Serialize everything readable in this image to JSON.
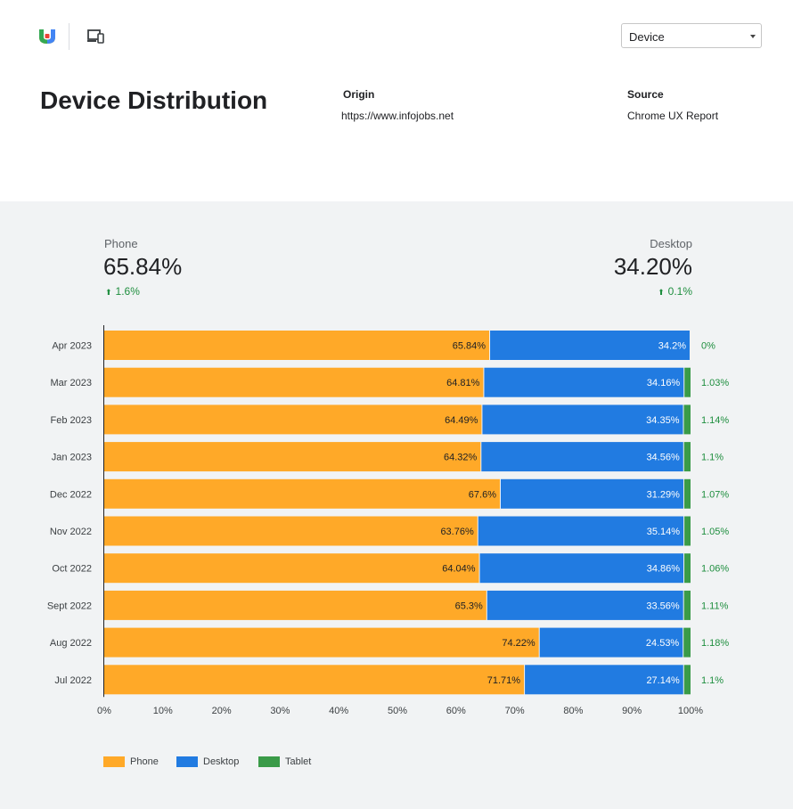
{
  "header": {
    "select_value": "Device",
    "page_title": "Device Distribution",
    "origin_label": "Origin",
    "origin_value": "https://www.infojobs.net",
    "source_label": "Source",
    "source_value": "Chrome UX Report"
  },
  "stats": {
    "phone": {
      "label": "Phone",
      "value": "65.84%",
      "change": "1.6%"
    },
    "desktop": {
      "label": "Desktop",
      "value": "34.20%",
      "change": "0.1%"
    }
  },
  "colors": {
    "phone": "#ffa928",
    "desktop": "#217be1",
    "tablet": "#3a9b48",
    "positive": "#1e8e3e"
  },
  "chart_data": {
    "type": "bar",
    "orientation": "horizontal",
    "stacked": true,
    "categories": [
      "Apr 2023",
      "Mar 2023",
      "Feb 2023",
      "Jan 2023",
      "Dec 2022",
      "Nov 2022",
      "Oct 2022",
      "Sept 2022",
      "Aug 2022",
      "Jul 2022"
    ],
    "series": [
      {
        "name": "Phone",
        "values": [
          65.84,
          64.81,
          64.49,
          64.32,
          67.6,
          63.76,
          64.04,
          65.3,
          74.22,
          71.71
        ],
        "labels": [
          "65.84%",
          "64.81%",
          "64.49%",
          "64.32%",
          "67.6%",
          "63.76%",
          "64.04%",
          "65.3%",
          "74.22%",
          "71.71%"
        ]
      },
      {
        "name": "Desktop",
        "values": [
          34.2,
          34.16,
          34.35,
          34.56,
          31.29,
          35.14,
          34.86,
          33.56,
          24.53,
          27.14
        ],
        "labels": [
          "34.2%",
          "34.16%",
          "34.35%",
          "34.56%",
          "31.29%",
          "35.14%",
          "34.86%",
          "33.56%",
          "24.53%",
          "27.14%"
        ]
      },
      {
        "name": "Tablet",
        "values": [
          0,
          1.03,
          1.14,
          1.1,
          1.07,
          1.05,
          1.06,
          1.11,
          1.18,
          1.1
        ],
        "labels": [
          "0%",
          "1.03%",
          "1.14%",
          "1.1%",
          "1.07%",
          "1.05%",
          "1.06%",
          "1.11%",
          "1.18%",
          "1.1%"
        ]
      }
    ],
    "xlim": [
      0,
      100
    ],
    "xticks": [
      "0%",
      "10%",
      "20%",
      "30%",
      "40%",
      "50%",
      "60%",
      "70%",
      "80%",
      "90%",
      "100%"
    ],
    "legend": {
      "position": "bottom-left",
      "items": [
        "Phone",
        "Desktop",
        "Tablet"
      ]
    },
    "grid": false
  }
}
